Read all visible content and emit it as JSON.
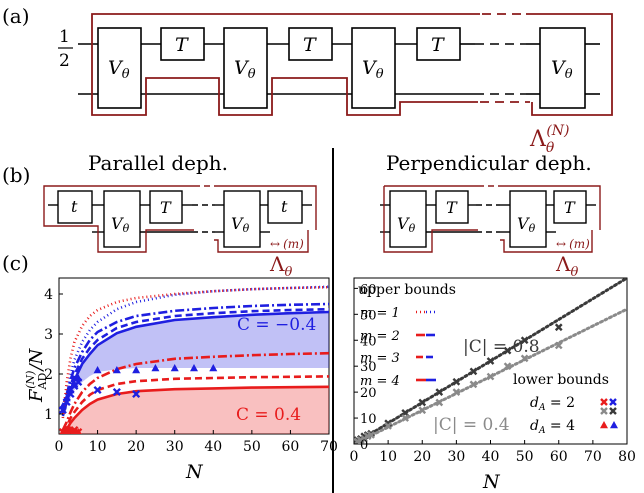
{
  "panels": {
    "a": {
      "label": "(a)",
      "half": "1",
      "half_den": "2",
      "gate_v": "V",
      "gate_sub": "θ",
      "gate_t": "T",
      "lambda": "Λ",
      "lambda_sub": "θ",
      "lambda_sup": "(N)"
    },
    "b": {
      "label": "(b)",
      "left_title": "Parallel deph.",
      "right_title": "Perpendicular deph.",
      "gate_small_t": "t",
      "gate_t": "T",
      "gate_v": "V",
      "gate_sub": "θ",
      "lambda": "Λ",
      "lambda_sub": "θ",
      "lambda_arrow": "↔",
      "lambda_sup": "(m)"
    },
    "c": {
      "label": "(c)"
    }
  },
  "colors": {
    "frame": "#8b1a1a",
    "blue": "#1f1fe0",
    "red": "#e81c1c",
    "dark_gray": "#3a3a3a",
    "light_gray": "#8a8a8a"
  },
  "chart_data": [
    {
      "type": "line",
      "xlabel": "N",
      "ylabel": "F_AD^(N)/N",
      "ylabel_main": "F",
      "ylabel_sub": "AD",
      "ylabel_sup": "(N)",
      "ylabel_tail": "/N",
      "xlim": [
        0,
        70
      ],
      "ylim": [
        0.5,
        4.4
      ],
      "xticks": [
        0,
        10,
        20,
        30,
        40,
        50,
        60,
        70
      ],
      "yticks": [
        1,
        2,
        3,
        4
      ],
      "annotations": [
        "C = −0.4",
        "C = 0.4"
      ],
      "series": [
        {
          "name": "C = −0.4, m = 1",
          "color": "blue",
          "dash": "1,3",
          "x": [
            1,
            2,
            3,
            4,
            6,
            8,
            10,
            15,
            20,
            30,
            40,
            50,
            60,
            70
          ],
          "y": [
            1.1,
            1.6,
            2.0,
            2.35,
            2.8,
            3.1,
            3.3,
            3.62,
            3.8,
            3.98,
            4.07,
            4.12,
            4.15,
            4.18
          ]
        },
        {
          "name": "C = −0.4, m = 2",
          "color": "blue",
          "dash": "9,3,2,3",
          "x": [
            1,
            2,
            3,
            4,
            6,
            8,
            10,
            15,
            20,
            30,
            40,
            50,
            60,
            70
          ],
          "y": [
            1.05,
            1.5,
            1.85,
            2.15,
            2.55,
            2.85,
            3.05,
            3.3,
            3.45,
            3.58,
            3.65,
            3.7,
            3.73,
            3.75
          ]
        },
        {
          "name": "C = −0.4, m = 3",
          "color": "blue",
          "dash": "7,4",
          "x": [
            1,
            2,
            3,
            4,
            6,
            8,
            10,
            15,
            20,
            30,
            40,
            50,
            60,
            70
          ],
          "y": [
            1.0,
            1.4,
            1.72,
            1.98,
            2.38,
            2.65,
            2.85,
            3.15,
            3.3,
            3.45,
            3.52,
            3.57,
            3.6,
            3.62
          ]
        },
        {
          "name": "C = −0.4, m = 4",
          "color": "blue",
          "dash": "",
          "x": [
            1,
            2,
            3,
            4,
            6,
            8,
            10,
            15,
            20,
            30,
            40,
            50,
            60,
            70
          ],
          "y": [
            0.95,
            1.3,
            1.6,
            1.85,
            2.25,
            2.5,
            2.72,
            3.02,
            3.18,
            3.35,
            3.42,
            3.48,
            3.52,
            3.55
          ]
        },
        {
          "name": "C = 0.4, m = 1",
          "color": "red",
          "dash": "1,3",
          "x": [
            1,
            2,
            3,
            4,
            6,
            8,
            10,
            15,
            20,
            30,
            40,
            50,
            60,
            70
          ],
          "y": [
            0.9,
            1.8,
            2.4,
            2.8,
            3.2,
            3.45,
            3.6,
            3.8,
            3.9,
            4.0,
            4.07,
            4.12,
            4.15,
            4.17
          ]
        },
        {
          "name": "C = 0.4, m = 2",
          "color": "red",
          "dash": "9,3,2,3",
          "x": [
            1,
            2,
            3,
            4,
            6,
            8,
            10,
            15,
            20,
            30,
            40,
            50,
            60,
            70
          ],
          "y": [
            0.6,
            0.8,
            1.05,
            1.25,
            1.55,
            1.75,
            1.9,
            2.12,
            2.25,
            2.38,
            2.43,
            2.47,
            2.5,
            2.52
          ]
        },
        {
          "name": "C = 0.4, m = 3",
          "color": "red",
          "dash": "7,4",
          "x": [
            1,
            2,
            3,
            4,
            6,
            8,
            10,
            15,
            20,
            30,
            40,
            50,
            60,
            70
          ],
          "y": [
            0.55,
            0.7,
            0.9,
            1.05,
            1.3,
            1.48,
            1.6,
            1.75,
            1.82,
            1.88,
            1.9,
            1.92,
            1.93,
            1.94
          ]
        },
        {
          "name": "C = 0.4, m = 4",
          "color": "red",
          "dash": "",
          "x": [
            1,
            2,
            3,
            4,
            6,
            8,
            10,
            15,
            20,
            30,
            40,
            50,
            60,
            70
          ],
          "y": [
            0.5,
            0.62,
            0.78,
            0.9,
            1.1,
            1.25,
            1.36,
            1.5,
            1.57,
            1.62,
            1.64,
            1.66,
            1.67,
            1.68
          ]
        }
      ],
      "points": [
        {
          "name": "C = −0.4, d_A = 2",
          "color": "blue",
          "marker": "x",
          "x": [
            1,
            2,
            3,
            4,
            5,
            10,
            15,
            20
          ],
          "y": [
            1.1,
            1.3,
            1.5,
            1.7,
            1.8,
            1.6,
            1.55,
            1.5
          ]
        },
        {
          "name": "C = −0.4, d_A = 4",
          "color": "blue",
          "marker": "triangle",
          "x": [
            1,
            2,
            3,
            4,
            5,
            10,
            15,
            20,
            25,
            30,
            35,
            40
          ],
          "y": [
            1.2,
            1.4,
            1.6,
            1.75,
            1.9,
            2.1,
            2.1,
            2.1,
            2.15,
            2.15,
            2.15,
            2.15
          ]
        },
        {
          "name": "C = 0.4, d_A = 2",
          "color": "red",
          "marker": "x",
          "x": [
            1,
            2,
            3,
            4,
            5,
            10,
            15,
            20,
            25,
            30,
            35,
            40
          ],
          "y": [
            0.55,
            0.6,
            0.55,
            0.6,
            0.55,
            0.35,
            0.35,
            0.35,
            0.35,
            0.35,
            0.35,
            0.35
          ]
        },
        {
          "name": "C = 0.4, d_A = 4",
          "color": "red",
          "marker": "triangle",
          "x": [
            1,
            2,
            3,
            4,
            5
          ],
          "y": [
            0.55,
            0.55,
            0.6,
            0.55,
            0.55
          ]
        }
      ],
      "fill_regions": [
        {
          "color": "blue",
          "x": [
            1,
            2,
            3,
            4,
            6,
            8,
            10,
            15,
            20,
            30,
            40,
            50,
            60,
            70
          ],
          "y_top": [
            0.95,
            1.3,
            1.6,
            1.85,
            2.25,
            2.5,
            2.72,
            3.02,
            3.18,
            3.35,
            3.42,
            3.48,
            3.52,
            3.55
          ],
          "y_bottom": [
            0.95,
            1.2,
            1.4,
            1.6,
            1.8,
            1.95,
            2.05,
            2.12,
            2.15,
            2.15,
            2.15,
            2.15,
            2.15,
            2.15
          ]
        },
        {
          "color": "red",
          "x": [
            1,
            2,
            3,
            4,
            6,
            8,
            10,
            15,
            20,
            30,
            40,
            50,
            60,
            70
          ],
          "y_top": [
            0.5,
            0.62,
            0.78,
            0.9,
            1.1,
            1.25,
            1.36,
            1.5,
            1.57,
            1.62,
            1.64,
            1.66,
            1.67,
            1.68
          ],
          "y_bottom": [
            0.5,
            0.5,
            0.5,
            0.5,
            0.5,
            0.5,
            0.5,
            0.5,
            0.5,
            0.5,
            0.5,
            0.5,
            0.5,
            0.5
          ]
        }
      ]
    },
    {
      "type": "scatter",
      "xlabel": "N",
      "xlim": [
        0,
        80
      ],
      "ylim": [
        0,
        64
      ],
      "xticks": [
        0,
        10,
        20,
        30,
        40,
        50,
        60,
        70,
        80
      ],
      "yticks": [
        0,
        10,
        20,
        30,
        40,
        50,
        60
      ],
      "annotations": [
        "|C| = 0.8",
        "|C| = 0.4"
      ],
      "series": [
        {
          "name": "|C| = 0.8 bound",
          "color": "dark_gray",
          "dash": "2,3",
          "x": [
            0,
            80
          ],
          "y": [
            0,
            64
          ]
        },
        {
          "name": "|C| = 0.4 bound",
          "color": "light_gray",
          "dash": "2,3",
          "x": [
            0,
            80
          ],
          "y": [
            0,
            52
          ]
        }
      ],
      "points": [
        {
          "name": "|C| = 0.8",
          "color": "dark_gray",
          "marker": "x",
          "x": [
            1,
            2,
            3,
            4,
            5,
            10,
            15,
            20,
            25,
            30,
            35,
            40,
            45,
            50,
            60
          ],
          "y": [
            1.5,
            2,
            3,
            3.5,
            4,
            8,
            12,
            16,
            20,
            24,
            28,
            32,
            36,
            40,
            45
          ]
        },
        {
          "name": "|C| = 0.4",
          "color": "light_gray",
          "marker": "x",
          "x": [
            1,
            2,
            3,
            4,
            5,
            10,
            15,
            20,
            25,
            30,
            35,
            40,
            45,
            50,
            60
          ],
          "y": [
            1,
            1.5,
            2,
            3,
            3.5,
            7,
            10,
            13,
            16,
            20,
            23,
            26,
            30,
            33,
            38
          ]
        }
      ],
      "legend": {
        "upper_title": "upper bounds",
        "upper_items": [
          "m = 1",
          "m = 2",
          "m = 3",
          "m = 4"
        ],
        "lower_title": "lower bounds",
        "lower_items": [
          "d_A = 2",
          "d_A = 4"
        ],
        "lower_labels": [
          {
            "var": "d",
            "sub": "A",
            "rest": " = 2"
          },
          {
            "var": "d",
            "sub": "A",
            "rest": " = 4"
          }
        ]
      }
    }
  ]
}
